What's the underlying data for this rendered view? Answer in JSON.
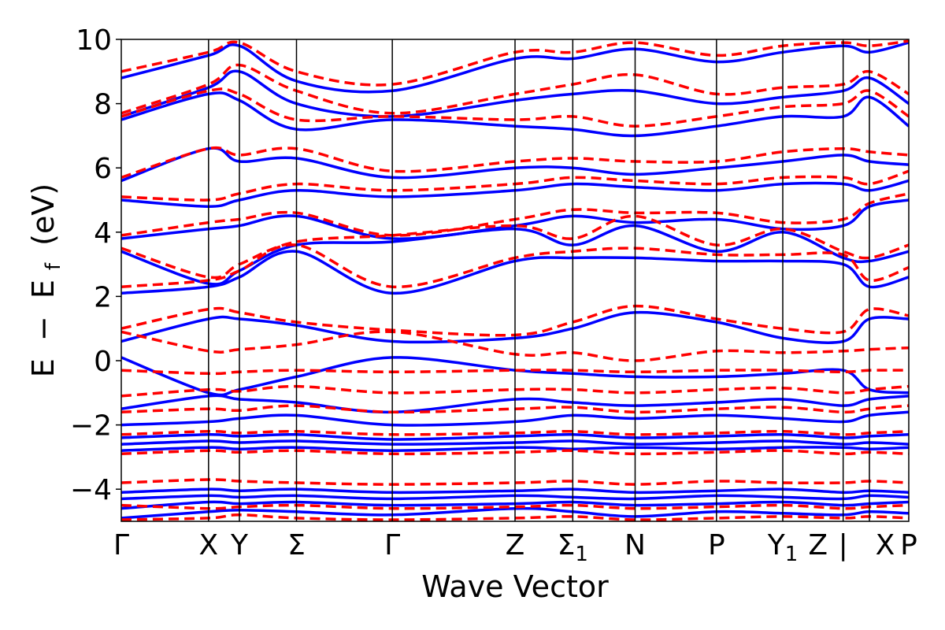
{
  "chart_data": {
    "type": "line",
    "xlabel": "Wave Vector",
    "ylabel_parts": {
      "a": "E",
      "dash": "−",
      "b": "E",
      "sub": "f",
      "unit": "(eV)"
    },
    "ylim": [
      -5,
      10
    ],
    "xlim": [
      0,
      12.0
    ],
    "y_ticks": [
      {
        "value": 10,
        "label": "10"
      },
      {
        "value": 8,
        "label": "8"
      },
      {
        "value": 6,
        "label": "6"
      },
      {
        "value": 4,
        "label": "4"
      },
      {
        "value": 2,
        "label": "2"
      },
      {
        "value": 0,
        "label": "0"
      },
      {
        "value": -2,
        "label": "−2"
      },
      {
        "value": -4,
        "label": "−4"
      }
    ],
    "k_points": [
      {
        "x": 0.0,
        "label": "Γ",
        "sub": ""
      },
      {
        "x": 1.33,
        "label": "X",
        "sub": ""
      },
      {
        "x": 1.8,
        "label": "Y",
        "sub": ""
      },
      {
        "x": 2.67,
        "label": "Σ",
        "sub": ""
      },
      {
        "x": 4.13,
        "label": "Γ",
        "sub": ""
      },
      {
        "x": 6.0,
        "label": "Z",
        "sub": ""
      },
      {
        "x": 6.88,
        "label": "Σ",
        "sub": "1"
      },
      {
        "x": 7.83,
        "label": "N",
        "sub": ""
      },
      {
        "x": 9.07,
        "label": "P",
        "sub": ""
      },
      {
        "x": 10.08,
        "label": "Y",
        "sub": "1"
      },
      {
        "x": 11.0,
        "label": "Z",
        "sub": ""
      },
      {
        "x": 11.0,
        "label": "|",
        "sub": ""
      },
      {
        "x": 11.4,
        "label": "X",
        "sub": ""
      },
      {
        "x": 12.0,
        "label": "P",
        "sub": ""
      }
    ],
    "series": [
      {
        "style": "solid",
        "color": "#0000ff",
        "bands": [
          [
            -4.9,
            -4.7,
            -4.65,
            -4.7,
            -4.8,
            -4.6,
            -4.7,
            -4.85,
            -4.7,
            -4.75,
            -4.8,
            -4.7,
            -4.75
          ],
          [
            -4.6,
            -4.4,
            -4.45,
            -4.4,
            -4.5,
            -4.45,
            -4.4,
            -4.5,
            -4.45,
            -4.4,
            -4.5,
            -4.45,
            -4.4
          ],
          [
            -4.3,
            -4.2,
            -4.25,
            -4.2,
            -4.3,
            -4.2,
            -4.25,
            -4.3,
            -4.2,
            -4.25,
            -4.3,
            -4.2,
            -4.25
          ],
          [
            -4.1,
            -4.0,
            -4.05,
            -4.0,
            -4.1,
            -4.05,
            -4.0,
            -4.1,
            -4.05,
            -4.0,
            -4.1,
            -4.05,
            -4.1
          ],
          [
            -2.8,
            -2.7,
            -2.75,
            -2.7,
            -2.8,
            -2.7,
            -2.75,
            -2.7,
            -2.75,
            -2.7,
            -2.7,
            -2.75,
            -2.7
          ],
          [
            -2.6,
            -2.5,
            -2.55,
            -2.5,
            -2.6,
            -2.55,
            -2.5,
            -2.6,
            -2.55,
            -2.5,
            -2.6,
            -2.55,
            -2.6
          ],
          [
            -2.4,
            -2.3,
            -2.35,
            -2.3,
            -2.45,
            -2.35,
            -2.3,
            -2.4,
            -2.35,
            -2.3,
            -2.4,
            -2.35,
            -2.3
          ],
          [
            -2.0,
            -1.9,
            -1.8,
            -1.7,
            -2.0,
            -1.9,
            -1.7,
            -1.8,
            -1.7,
            -1.8,
            -1.9,
            -1.7,
            -1.6
          ],
          [
            -1.5,
            -1.1,
            -1.2,
            -1.3,
            -1.6,
            -1.2,
            -1.3,
            -1.4,
            -1.3,
            -1.2,
            -1.4,
            -1.2,
            -1.1
          ],
          [
            0.1,
            -1.0,
            -0.9,
            -0.5,
            0.1,
            -0.3,
            -0.4,
            -0.5,
            -0.5,
            -0.4,
            -0.3,
            -0.9,
            -1.0
          ],
          [
            0.6,
            1.3,
            1.3,
            1.1,
            0.6,
            0.7,
            1.0,
            1.5,
            1.2,
            0.7,
            0.6,
            1.3,
            1.3
          ],
          [
            2.1,
            2.3,
            2.6,
            3.4,
            2.1,
            3.1,
            3.2,
            3.2,
            3.1,
            3.1,
            3.0,
            2.3,
            2.6
          ],
          [
            3.4,
            2.4,
            2.8,
            3.6,
            3.7,
            4.1,
            3.6,
            4.2,
            3.4,
            4.0,
            3.2,
            3.1,
            3.4
          ],
          [
            3.8,
            4.1,
            4.2,
            4.5,
            3.8,
            4.2,
            4.5,
            4.3,
            4.4,
            4.1,
            4.2,
            4.8,
            5.0
          ],
          [
            5.0,
            4.8,
            5.0,
            5.3,
            5.1,
            5.3,
            5.5,
            5.4,
            5.3,
            5.5,
            5.5,
            5.3,
            5.6
          ],
          [
            5.6,
            6.6,
            6.2,
            6.3,
            5.7,
            6.0,
            6.0,
            5.8,
            6.0,
            6.2,
            6.4,
            6.2,
            6.1
          ],
          [
            7.5,
            8.3,
            8.1,
            7.2,
            7.5,
            7.3,
            7.2,
            7.0,
            7.3,
            7.6,
            7.6,
            8.2,
            7.3
          ],
          [
            7.6,
            8.5,
            9.0,
            8.0,
            7.6,
            8.1,
            8.3,
            8.4,
            8.0,
            8.2,
            8.4,
            8.8,
            8.0
          ],
          [
            8.8,
            9.5,
            9.8,
            8.7,
            8.4,
            9.4,
            9.4,
            9.7,
            9.3,
            9.6,
            9.8,
            9.6,
            9.9
          ]
        ]
      },
      {
        "style": "dashed",
        "color": "#ff0000",
        "bands": [
          [
            -4.95,
            -4.9,
            -4.8,
            -4.9,
            -4.95,
            -4.9,
            -4.85,
            -4.95,
            -4.9,
            -4.85,
            -4.9,
            -4.85,
            -4.9
          ],
          [
            -4.5,
            -4.6,
            -4.55,
            -4.5,
            -4.6,
            -4.55,
            -4.5,
            -4.6,
            -4.55,
            -4.5,
            -4.6,
            -4.55,
            -4.5
          ],
          [
            -3.8,
            -3.7,
            -3.75,
            -3.8,
            -3.85,
            -3.8,
            -3.75,
            -3.85,
            -3.75,
            -3.8,
            -3.8,
            -3.75,
            -3.8
          ],
          [
            -2.9,
            -2.8,
            -2.85,
            -2.8,
            -2.9,
            -2.85,
            -2.8,
            -2.9,
            -2.85,
            -2.8,
            -2.9,
            -2.85,
            -2.9
          ],
          [
            -2.3,
            -2.2,
            -2.25,
            -2.2,
            -2.3,
            -2.25,
            -2.2,
            -2.3,
            -2.25,
            -2.2,
            -2.3,
            -2.25,
            -2.2
          ],
          [
            -1.6,
            -1.5,
            -1.55,
            -1.4,
            -1.6,
            -1.5,
            -1.45,
            -1.6,
            -1.5,
            -1.45,
            -1.6,
            -1.5,
            -1.4
          ],
          [
            -1.1,
            -0.9,
            -0.95,
            -0.8,
            -1.0,
            -0.9,
            -0.9,
            -1.0,
            -0.9,
            -0.85,
            -1.0,
            -0.9,
            -0.8
          ],
          [
            -0.3,
            -0.4,
            -0.35,
            -0.3,
            -0.35,
            -0.3,
            -0.3,
            -0.35,
            -0.3,
            -0.3,
            -0.35,
            -0.3,
            -0.3
          ],
          [
            0.9,
            0.3,
            0.35,
            0.5,
            0.9,
            0.2,
            0.25,
            0.0,
            0.3,
            0.25,
            0.3,
            0.35,
            0.4
          ],
          [
            1.0,
            1.6,
            1.5,
            1.2,
            0.95,
            0.8,
            1.2,
            1.7,
            1.3,
            1.0,
            0.9,
            1.6,
            1.4
          ],
          [
            2.3,
            2.5,
            2.8,
            3.6,
            2.3,
            3.2,
            3.4,
            3.5,
            3.3,
            3.3,
            3.3,
            2.5,
            2.9
          ],
          [
            3.5,
            2.6,
            3.0,
            3.7,
            3.9,
            4.2,
            3.8,
            4.5,
            3.6,
            4.1,
            3.4,
            3.2,
            3.6
          ],
          [
            3.9,
            4.3,
            4.4,
            4.6,
            3.9,
            4.4,
            4.7,
            4.6,
            4.6,
            4.3,
            4.4,
            4.9,
            5.2
          ],
          [
            5.1,
            5.0,
            5.2,
            5.5,
            5.3,
            5.5,
            5.7,
            5.6,
            5.5,
            5.7,
            5.7,
            5.5,
            5.9
          ],
          [
            5.7,
            6.6,
            6.4,
            6.6,
            5.9,
            6.2,
            6.3,
            6.2,
            6.2,
            6.5,
            6.6,
            6.5,
            6.4
          ],
          [
            7.6,
            8.4,
            8.3,
            7.5,
            7.6,
            7.5,
            7.6,
            7.3,
            7.6,
            7.9,
            8.0,
            8.4,
            7.6
          ],
          [
            7.7,
            8.6,
            9.2,
            8.4,
            7.7,
            8.3,
            8.6,
            8.9,
            8.3,
            8.5,
            8.6,
            9.0,
            8.3
          ],
          [
            9.0,
            9.6,
            9.9,
            9.0,
            8.6,
            9.6,
            9.6,
            9.9,
            9.5,
            9.8,
            9.9,
            9.8,
            9.95
          ]
        ]
      }
    ]
  }
}
